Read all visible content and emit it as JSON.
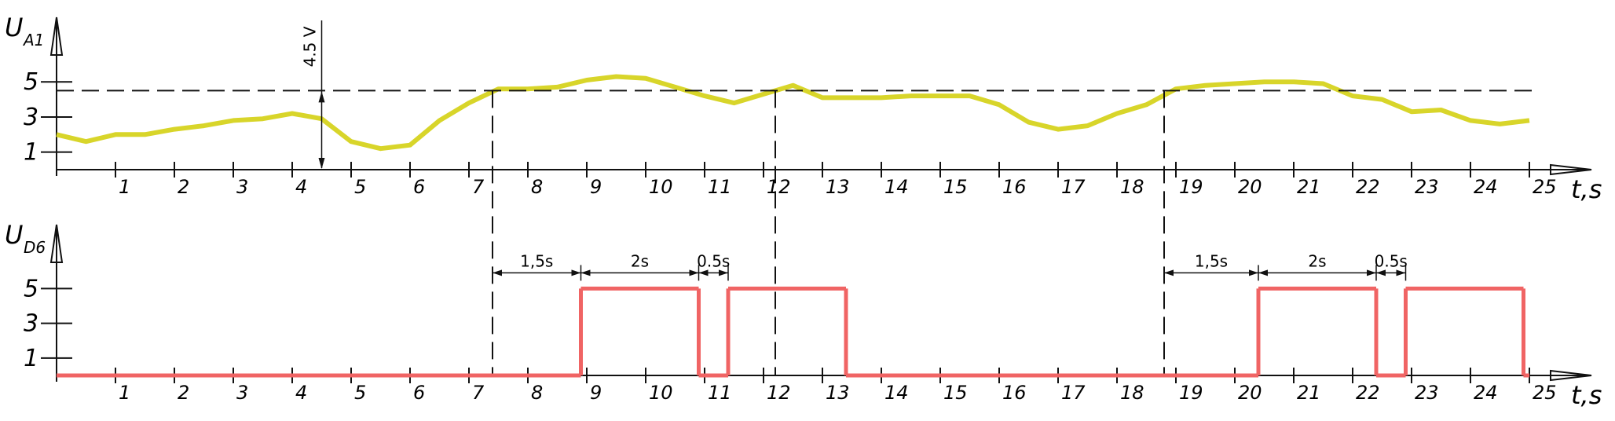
{
  "chart_data": [
    {
      "type": "line",
      "ylabel": "U",
      "ylabel_sub": "A1",
      "xlabel": "t,s",
      "x": [
        0,
        0.5,
        1,
        1.5,
        2,
        2.5,
        3,
        3.5,
        4,
        4.5,
        5,
        5.5,
        6,
        6.5,
        7,
        7.5,
        8,
        8.5,
        9,
        9.5,
        10,
        10.5,
        11,
        11.5,
        12,
        12.5,
        13,
        13.5,
        14,
        14.5,
        15,
        15.5,
        16,
        16.5,
        17,
        17.5,
        18,
        18.5,
        19,
        19.5,
        20,
        20.5,
        21,
        21.5,
        22,
        22.5,
        23,
        23.5,
        24,
        24.5,
        25
      ],
      "series": [
        {
          "color": "#d8d52a",
          "values": [
            2.0,
            1.6,
            2.0,
            2.0,
            2.3,
            2.5,
            2.8,
            2.9,
            3.2,
            2.9,
            1.6,
            1.2,
            1.4,
            2.8,
            3.8,
            4.6,
            4.6,
            4.7,
            5.1,
            5.3,
            5.2,
            4.7,
            4.2,
            3.8,
            4.3,
            4.8,
            4.1,
            4.1,
            4.1,
            4.2,
            4.2,
            4.2,
            3.7,
            2.7,
            2.3,
            2.5,
            3.2,
            3.7,
            4.6,
            4.8,
            4.9,
            5.0,
            5.0,
            4.9,
            4.2,
            4.0,
            3.3,
            3.4,
            2.8,
            2.6,
            2.8
          ]
        }
      ],
      "xlim": [
        0,
        26
      ],
      "ylim": [
        0,
        8.5
      ],
      "xticks": [
        1,
        2,
        3,
        4,
        5,
        6,
        7,
        8,
        9,
        10,
        11,
        12,
        13,
        14,
        15,
        16,
        17,
        18,
        19,
        20,
        21,
        22,
        23,
        24,
        25
      ],
      "yticks": [
        1,
        3,
        5
      ],
      "threshold": {
        "value": 4.5,
        "label": "4.5 V",
        "x": 4.5
      },
      "crossings": [
        7.4,
        12.2,
        18.8
      ]
    },
    {
      "type": "step",
      "ylabel": "U",
      "ylabel_sub": "D6",
      "xlabel": "t,s",
      "x": [
        0,
        8.9,
        10.9,
        11.4,
        13.4,
        20.4,
        22.4,
        22.9,
        24.9
      ],
      "series": [
        {
          "color": "#f06464",
          "values": [
            0,
            5,
            0,
            5,
            0,
            5,
            0,
            5,
            0
          ]
        }
      ],
      "xlim": [
        0,
        26
      ],
      "ylim": [
        0,
        8.5
      ],
      "xticks": [
        1,
        2,
        3,
        4,
        5,
        6,
        7,
        8,
        9,
        10,
        11,
        12,
        13,
        14,
        15,
        16,
        17,
        18,
        19,
        20,
        21,
        22,
        23,
        24,
        25
      ],
      "yticks": [
        1,
        3,
        5
      ],
      "dimensions": [
        {
          "from": 7.4,
          "to": 8.9,
          "label": "1,5s"
        },
        {
          "from": 8.9,
          "to": 10.9,
          "label": "2s"
        },
        {
          "from": 10.9,
          "to": 11.4,
          "label": "0.5s"
        },
        {
          "from": 18.8,
          "to": 20.4,
          "label": "1,5s"
        },
        {
          "from": 20.4,
          "to": 22.4,
          "label": "2s"
        },
        {
          "from": 22.4,
          "to": 22.9,
          "label": "0.5s"
        }
      ]
    }
  ]
}
